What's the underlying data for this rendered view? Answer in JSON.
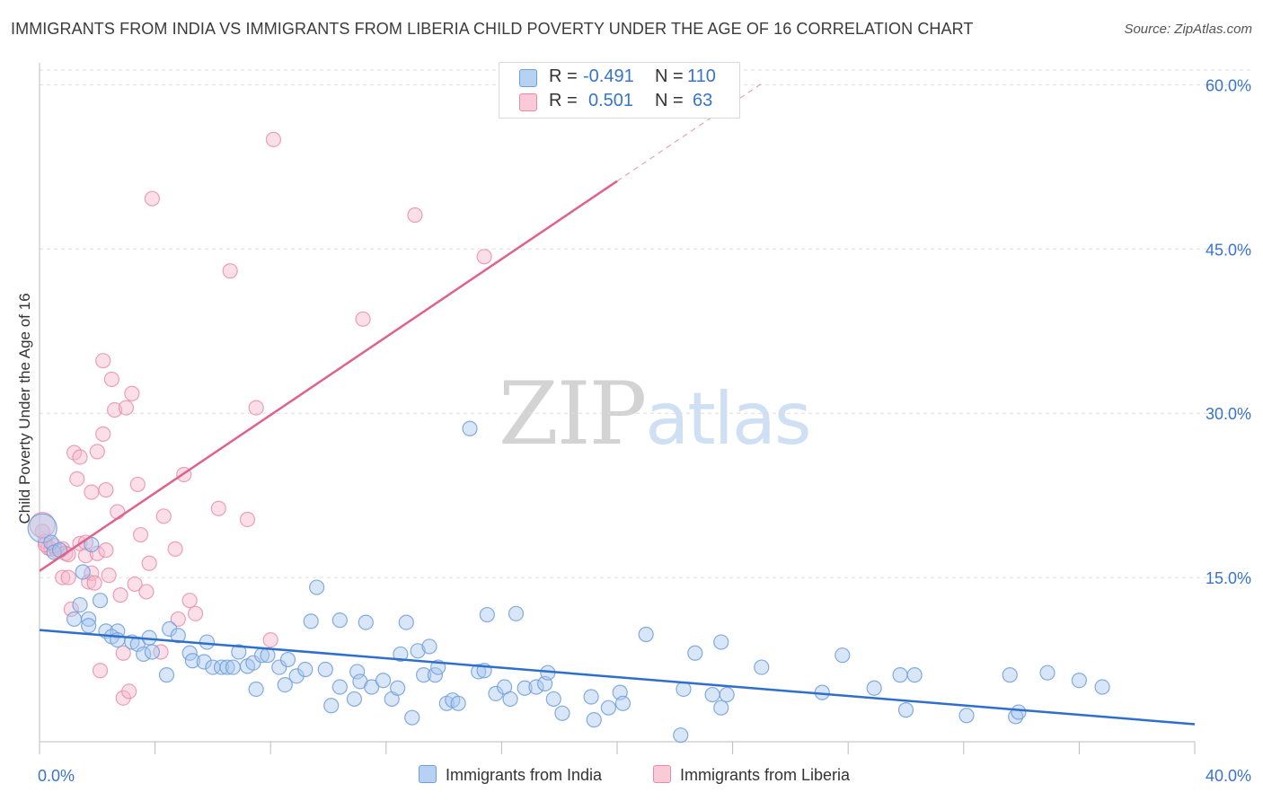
{
  "title": "IMMIGRANTS FROM INDIA VS IMMIGRANTS FROM LIBERIA CHILD POVERTY UNDER THE AGE OF 16 CORRELATION CHART",
  "source": "Source: ZipAtlas.com",
  "watermark": {
    "zip": "ZIP",
    "atlas": "atlas"
  },
  "legend": {
    "rows": [
      {
        "r_label": "R =",
        "r_value": "-0.491",
        "n_label": "N =",
        "n_value": "110"
      },
      {
        "r_label": "R =",
        "r_value": "0.501",
        "n_label": "N =",
        "n_value": "63"
      }
    ]
  },
  "colors": {
    "india_fill": "#a9c8ef",
    "india_stroke": "#6f9fd8",
    "india_line": "#2e6fcc",
    "liberia_fill": "#f6b9cc",
    "liberia_stroke": "#e98aa8",
    "liberia_line": "#e0628a",
    "axis_text": "#3874c9",
    "grid": "#dddddd"
  },
  "chart_data": {
    "type": "scatter",
    "title": "IMMIGRANTS FROM INDIA VS IMMIGRANTS FROM LIBERIA CHILD POVERTY UNDER THE AGE OF 16 CORRELATION CHART",
    "xlabel": "",
    "ylabel": "Child Poverty Under the Age of 16",
    "xlim": [
      0,
      40
    ],
    "ylim": [
      0,
      62
    ],
    "x_tick_labels": [
      "0.0%",
      "40.0%"
    ],
    "y_ticks": [
      15,
      30,
      45,
      60
    ],
    "y_tick_labels": [
      "15.0%",
      "30.0%",
      "45.0%",
      "60.0%"
    ],
    "grid": "horizontal dashed",
    "legend_position": "bottom",
    "series": [
      {
        "name": "Immigrants from India",
        "r": -0.491,
        "n": 110,
        "trend": {
          "x": [
            0,
            40
          ],
          "y": [
            10.2,
            1.6
          ]
        },
        "points": [
          [
            0.1,
            19.5
          ],
          [
            0.4,
            18.2
          ],
          [
            0.5,
            17.3
          ],
          [
            0.7,
            17.5
          ],
          [
            1.8,
            18.0
          ],
          [
            1.5,
            15.5
          ],
          [
            1.4,
            12.5
          ],
          [
            2.1,
            12.9
          ],
          [
            1.2,
            11.2
          ],
          [
            1.7,
            11.2
          ],
          [
            1.7,
            10.6
          ],
          [
            2.3,
            10.1
          ],
          [
            2.7,
            10.1
          ],
          [
            2.5,
            9.6
          ],
          [
            2.7,
            9.3
          ],
          [
            3.2,
            9.1
          ],
          [
            3.4,
            8.9
          ],
          [
            3.6,
            8.0
          ],
          [
            3.8,
            9.5
          ],
          [
            3.9,
            8.2
          ],
          [
            4.5,
            10.3
          ],
          [
            4.4,
            6.1
          ],
          [
            4.8,
            9.7
          ],
          [
            5.2,
            8.1
          ],
          [
            5.3,
            7.4
          ],
          [
            5.7,
            7.3
          ],
          [
            5.8,
            9.1
          ],
          [
            6.0,
            6.8
          ],
          [
            6.3,
            6.8
          ],
          [
            6.5,
            6.8
          ],
          [
            6.7,
            6.8
          ],
          [
            6.9,
            8.2
          ],
          [
            7.2,
            6.9
          ],
          [
            7.4,
            7.2
          ],
          [
            7.7,
            7.9
          ],
          [
            7.5,
            4.8
          ],
          [
            7.9,
            7.9
          ],
          [
            8.3,
            6.8
          ],
          [
            8.5,
            5.2
          ],
          [
            8.6,
            7.5
          ],
          [
            8.9,
            6.0
          ],
          [
            9.2,
            6.6
          ],
          [
            9.4,
            11.0
          ],
          [
            9.6,
            14.1
          ],
          [
            9.9,
            6.6
          ],
          [
            10.1,
            3.3
          ],
          [
            10.4,
            11.1
          ],
          [
            10.4,
            5.0
          ],
          [
            10.9,
            3.9
          ],
          [
            11.0,
            6.4
          ],
          [
            11.1,
            5.5
          ],
          [
            11.3,
            10.9
          ],
          [
            11.5,
            5.0
          ],
          [
            11.9,
            5.6
          ],
          [
            12.2,
            3.9
          ],
          [
            12.4,
            4.9
          ],
          [
            12.5,
            8.0
          ],
          [
            12.7,
            10.9
          ],
          [
            12.9,
            2.2
          ],
          [
            13.1,
            8.3
          ],
          [
            13.3,
            6.1
          ],
          [
            13.5,
            8.7
          ],
          [
            13.7,
            6.1
          ],
          [
            13.8,
            6.8
          ],
          [
            14.1,
            3.5
          ],
          [
            14.3,
            3.8
          ],
          [
            14.5,
            3.5
          ],
          [
            14.9,
            28.6
          ],
          [
            15.2,
            6.4
          ],
          [
            15.4,
            6.5
          ],
          [
            15.5,
            11.6
          ],
          [
            15.8,
            4.4
          ],
          [
            16.1,
            5.0
          ],
          [
            16.3,
            3.9
          ],
          [
            16.5,
            11.7
          ],
          [
            16.8,
            4.9
          ],
          [
            17.2,
            5.0
          ],
          [
            17.5,
            5.3
          ],
          [
            17.8,
            3.9
          ],
          [
            17.6,
            6.3
          ],
          [
            18.1,
            2.6
          ],
          [
            19.1,
            4.1
          ],
          [
            19.2,
            2.0
          ],
          [
            19.7,
            3.1
          ],
          [
            20.1,
            4.5
          ],
          [
            20.2,
            3.5
          ],
          [
            21.0,
            9.8
          ],
          [
            22.3,
            4.8
          ],
          [
            22.7,
            8.1
          ],
          [
            23.3,
            4.3
          ],
          [
            23.6,
            9.1
          ],
          [
            23.6,
            3.1
          ],
          [
            23.8,
            4.3
          ],
          [
            25.0,
            6.8
          ],
          [
            27.1,
            4.5
          ],
          [
            27.8,
            7.9
          ],
          [
            28.9,
            4.9
          ],
          [
            29.8,
            6.1
          ],
          [
            30.0,
            2.9
          ],
          [
            30.3,
            6.1
          ],
          [
            32.1,
            2.4
          ],
          [
            33.6,
            6.1
          ],
          [
            33.8,
            2.3
          ],
          [
            33.9,
            2.7
          ],
          [
            34.9,
            6.3
          ],
          [
            36.0,
            5.6
          ],
          [
            36.8,
            5.0
          ],
          [
            22.2,
            0.6
          ]
        ]
      },
      {
        "name": "Immigrants from Liberia",
        "r": 0.501,
        "n": 63,
        "trend": {
          "x": [
            0,
            20
          ],
          "y": [
            15.6,
            51.2
          ]
        },
        "trend_dashed": {
          "x": [
            20,
            25
          ],
          "y": [
            51.2,
            60.1
          ]
        },
        "points": [
          [
            0.1,
            19.2
          ],
          [
            0.2,
            18.3
          ],
          [
            0.3,
            17.7
          ],
          [
            0.4,
            17.6
          ],
          [
            0.6,
            17.4
          ],
          [
            0.8,
            17.6
          ],
          [
            0.9,
            17.2
          ],
          [
            1.0,
            17.1
          ],
          [
            0.8,
            15.0
          ],
          [
            1.0,
            15.0
          ],
          [
            1.1,
            12.1
          ],
          [
            1.3,
            24.0
          ],
          [
            1.2,
            26.4
          ],
          [
            1.4,
            26.0
          ],
          [
            1.4,
            18.1
          ],
          [
            1.6,
            18.2
          ],
          [
            1.6,
            17.0
          ],
          [
            1.7,
            14.6
          ],
          [
            1.8,
            15.4
          ],
          [
            1.8,
            22.8
          ],
          [
            1.9,
            14.5
          ],
          [
            2.0,
            17.2
          ],
          [
            2.0,
            26.5
          ],
          [
            2.1,
            6.5
          ],
          [
            2.2,
            28.1
          ],
          [
            2.2,
            34.8
          ],
          [
            2.3,
            23.0
          ],
          [
            2.4,
            15.2
          ],
          [
            2.5,
            33.1
          ],
          [
            2.6,
            30.3
          ],
          [
            2.7,
            21.0
          ],
          [
            2.8,
            13.4
          ],
          [
            2.9,
            8.1
          ],
          [
            2.9,
            4.0
          ],
          [
            3.0,
            30.5
          ],
          [
            3.1,
            4.6
          ],
          [
            3.2,
            31.8
          ],
          [
            3.3,
            14.4
          ],
          [
            3.4,
            23.5
          ],
          [
            3.5,
            18.9
          ],
          [
            3.7,
            13.7
          ],
          [
            3.8,
            16.3
          ],
          [
            3.9,
            49.6
          ],
          [
            4.2,
            8.2
          ],
          [
            4.3,
            20.6
          ],
          [
            4.7,
            17.6
          ],
          [
            4.8,
            11.2
          ],
          [
            5.0,
            24.4
          ],
          [
            5.2,
            12.9
          ],
          [
            5.4,
            11.7
          ],
          [
            6.2,
            21.3
          ],
          [
            6.6,
            43.0
          ],
          [
            7.2,
            20.3
          ],
          [
            7.5,
            30.5
          ],
          [
            8.0,
            9.3
          ],
          [
            8.1,
            55.0
          ],
          [
            11.2,
            38.6
          ],
          [
            13.0,
            48.1
          ],
          [
            15.4,
            44.3
          ],
          [
            0.2,
            18.0
          ],
          [
            0.5,
            17.9
          ],
          [
            2.3,
            17.5
          ],
          [
            0.1,
            19.8
          ]
        ]
      }
    ]
  },
  "bottom_legend": {
    "india": "Immigrants from India",
    "liberia": "Immigrants from Liberia"
  }
}
